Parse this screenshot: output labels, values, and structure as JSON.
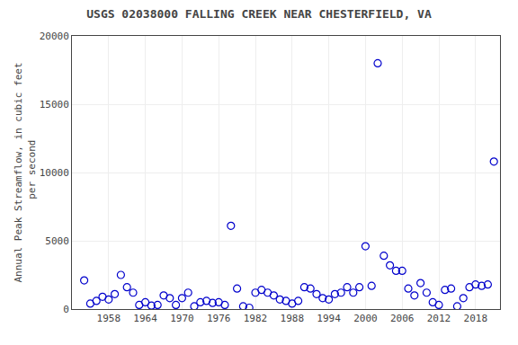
{
  "chart_data": {
    "type": "scatter",
    "title": "USGS 02038000 FALLING CREEK NEAR CHESTERFIELD, VA",
    "ylabel": "Annual Peak Streamflow, in cubic feet\n per second",
    "x": [
      1954,
      1955,
      1956,
      1957,
      1958,
      1959,
      1960,
      1961,
      1962,
      1963,
      1964,
      1965,
      1966,
      1967,
      1968,
      1969,
      1970,
      1971,
      1972,
      1973,
      1974,
      1975,
      1976,
      1977,
      1978,
      1979,
      1980,
      1981,
      1982,
      1983,
      1984,
      1985,
      1986,
      1987,
      1988,
      1989,
      1990,
      1991,
      1992,
      1993,
      1994,
      1995,
      1996,
      1997,
      1998,
      1999,
      2000,
      2001,
      2002,
      2003,
      2004,
      2005,
      2006,
      2007,
      2008,
      2009,
      2010,
      2011,
      2012,
      2013,
      2014,
      2015,
      2016,
      2017,
      2018,
      2019,
      2020,
      2021
    ],
    "values": [
      2100,
      400,
      600,
      900,
      700,
      1100,
      2500,
      1600,
      1200,
      300,
      500,
      250,
      300,
      1000,
      800,
      300,
      800,
      1200,
      200,
      500,
      600,
      450,
      500,
      300,
      6100,
      1500,
      200,
      100,
      1200,
      1400,
      1200,
      1000,
      700,
      600,
      400,
      600,
      1600,
      1500,
      1100,
      800,
      700,
      1100,
      1200,
      1600,
      1200,
      1600,
      4600,
      1700,
      18000,
      3900,
      3200,
      2800,
      2800,
      1500,
      1000,
      1900,
      1200,
      500,
      300,
      1400,
      1500,
      200,
      800,
      1600,
      1800,
      1700,
      1800,
      10800
    ],
    "color": "#0000CC",
    "marker": "circle-open",
    "xlim": [
      1952,
      2022
    ],
    "xticks": [
      1958,
      1964,
      1970,
      1976,
      1982,
      1988,
      1994,
      2000,
      2006,
      2012,
      2018
    ],
    "ylim": [
      0,
      20000
    ],
    "yticks": [
      0,
      5000,
      10000,
      15000,
      20000
    ],
    "grid": true
  }
}
